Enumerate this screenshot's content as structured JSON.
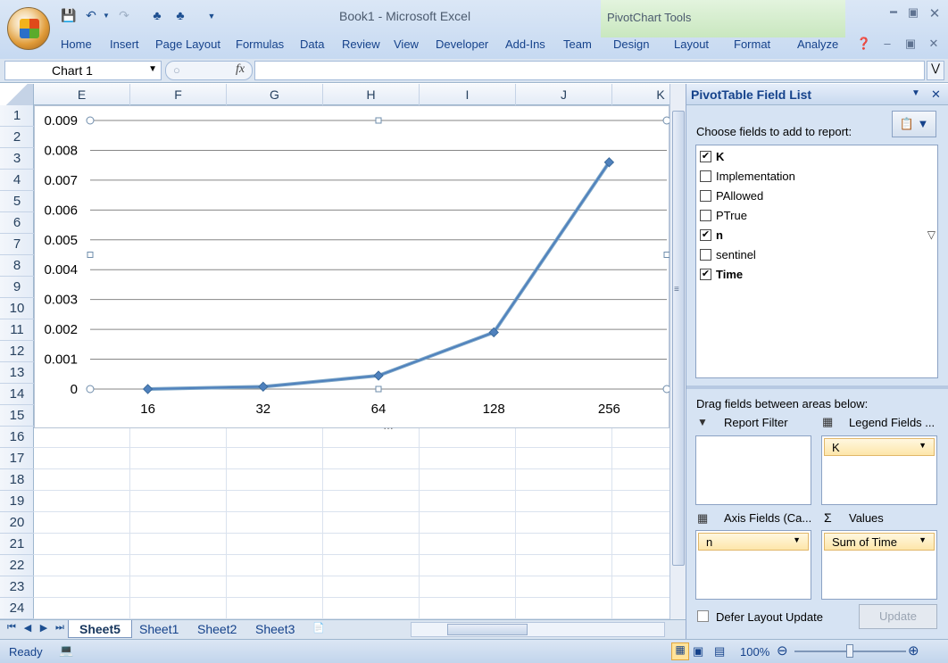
{
  "app": {
    "document_title": "Book1 - Microsoft Excel",
    "context_tool_title": "PivotChart Tools"
  },
  "ribbon": {
    "tabs": [
      "Home",
      "Insert",
      "Page Layout",
      "Formulas",
      "Data",
      "Review",
      "View",
      "Developer",
      "Add-Ins",
      "Team"
    ],
    "context_tabs": [
      "Design",
      "Layout",
      "Format",
      "Analyze"
    ]
  },
  "formula_bar": {
    "name_box": "Chart 1",
    "fx_label": "fx",
    "formula": ""
  },
  "sheet": {
    "columns": [
      "E",
      "F",
      "G",
      "H",
      "I",
      "J",
      "K"
    ],
    "rows": [
      "1",
      "2",
      "3",
      "4",
      "5",
      "6",
      "7",
      "8",
      "9",
      "10",
      "11",
      "12",
      "13",
      "14",
      "15",
      "16",
      "17",
      "18",
      "19",
      "20",
      "21",
      "22",
      "23",
      "24"
    ],
    "tabs": [
      "Sheet5",
      "Sheet1",
      "Sheet2",
      "Sheet3"
    ],
    "active_tab": "Sheet5"
  },
  "chart_data": {
    "type": "line",
    "categories": [
      "16",
      "32",
      "64",
      "128",
      "256"
    ],
    "series": [
      {
        "values": [
          0.0,
          8e-05,
          0.00045,
          0.0019,
          0.0076
        ]
      }
    ],
    "y_ticks": [
      "0.009",
      "0.008",
      "0.007",
      "0.006",
      "0.005",
      "0.004",
      "0.003",
      "0.002",
      "0.001",
      "0"
    ],
    "ylim": [
      0,
      0.009
    ],
    "grid": true,
    "line_color": "#4f81bd",
    "marker_color": "#4f81bd"
  },
  "pivot_pane": {
    "title": "PivotTable Field List",
    "choose_label": "Choose fields to add to report:",
    "fields": [
      {
        "label": "K",
        "checked": true,
        "bold": true,
        "filter": false
      },
      {
        "label": "Implementation",
        "checked": false,
        "bold": false,
        "filter": false
      },
      {
        "label": "PAllowed",
        "checked": false,
        "bold": false,
        "filter": false
      },
      {
        "label": "PTrue",
        "checked": false,
        "bold": false,
        "filter": false
      },
      {
        "label": "n",
        "checked": true,
        "bold": true,
        "filter": true
      },
      {
        "label": "sentinel",
        "checked": false,
        "bold": false,
        "filter": false
      },
      {
        "label": "Time",
        "checked": true,
        "bold": true,
        "filter": false
      }
    ],
    "drag_label": "Drag fields between areas below:",
    "areas": {
      "report_filter": {
        "label": "Report Filter",
        "item": ""
      },
      "legend_fields": {
        "label": "Legend Fields ...",
        "item": "K"
      },
      "axis_fields": {
        "label": "Axis Fields (Ca...",
        "item": "n"
      },
      "values": {
        "label": "Values",
        "item": "Sum of Time"
      }
    },
    "defer_label": "Defer Layout Update",
    "update_label": "Update"
  },
  "status": {
    "ready": "Ready",
    "zoom": "100%"
  }
}
